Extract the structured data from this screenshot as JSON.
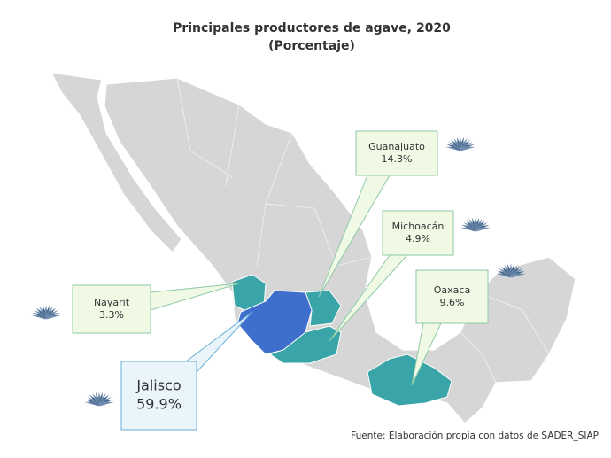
{
  "chart_data": {
    "type": "map",
    "title": "Principales productores de agave, 2020",
    "subtitle": "(Porcentaje)",
    "categories": [
      "Guanajuato",
      "Michoacán",
      "Oaxaca",
      "Nayarit",
      "Jalisco"
    ],
    "values": [
      14.3,
      4.9,
      9.6,
      3.3,
      59.9
    ],
    "value_labels": [
      "14.3%",
      "4.9%",
      "9.6%",
      "3.3%",
      "59.9%"
    ],
    "colors": [
      "#3aa5a8",
      "#3aa5a8",
      "#3aa5a8",
      "#3aa5a8",
      "#3f6fcc"
    ],
    "source": "Fuente: Elaboración propia con datos de SADER_SIAP"
  }
}
